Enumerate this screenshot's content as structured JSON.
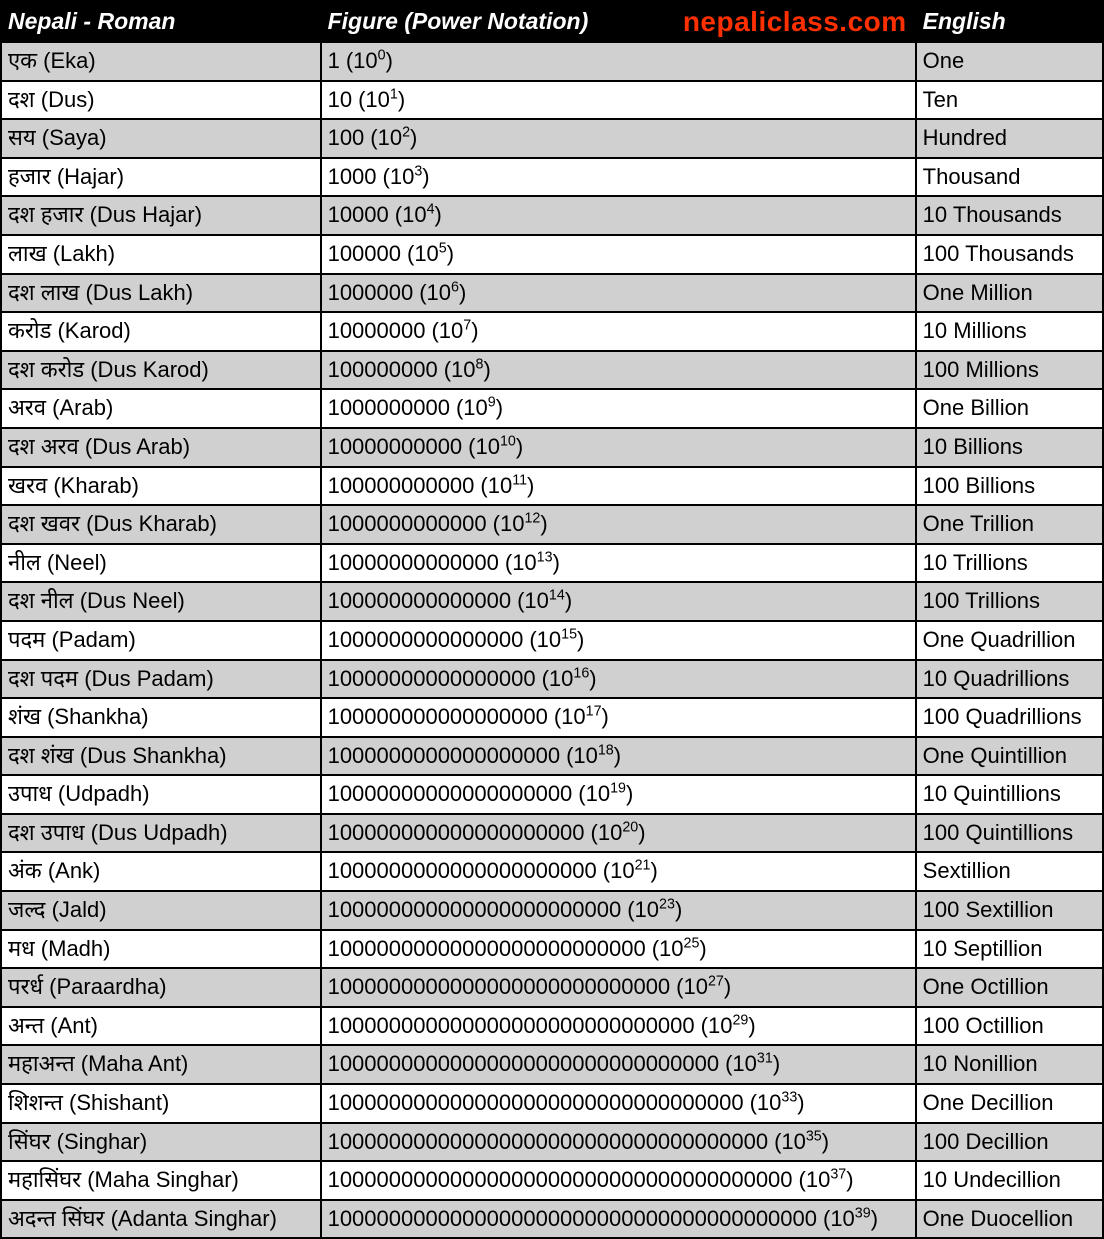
{
  "watermark": "nepaliclass.com",
  "colors": {
    "header_bg": "#000000",
    "header_text": "#ffffff",
    "row_odd_bg": "#d0d0d0",
    "row_even_bg": "#ffffff",
    "border": "#000000",
    "watermark": "#ff3000"
  },
  "typography": {
    "header_fontsize": 23,
    "header_style": "italic bold",
    "body_fontsize": 22,
    "watermark_fontsize": 28
  },
  "table": {
    "type": "table",
    "columns": [
      {
        "label": "Nepali - Roman",
        "width_pct": 29
      },
      {
        "label": "Figure (Power Notation)",
        "width_pct": 54
      },
      {
        "label": "English",
        "width_pct": 17
      }
    ],
    "rows": [
      {
        "nepali": "एक (Eka)",
        "figure": "1",
        "power_exp": "0",
        "english": "One",
        "shade": "odd"
      },
      {
        "nepali": "दश (Dus)",
        "figure": "10",
        "power_exp": "1",
        "english": "Ten",
        "shade": "even"
      },
      {
        "nepali": "सय (Saya)",
        "figure": "100",
        "power_exp": "2",
        "english": "Hundred",
        "shade": "odd"
      },
      {
        "nepali": "हजार (Hajar)",
        "figure": "1000",
        "power_exp": "3",
        "english": "Thousand",
        "shade": "even"
      },
      {
        "nepali": "दश हजार (Dus Hajar)",
        "figure": "10000",
        "power_exp": "4",
        "english": "10 Thousands",
        "shade": "odd"
      },
      {
        "nepali": "लाख (Lakh)",
        "figure": "100000",
        "power_exp": "5",
        "english": "100 Thousands",
        "shade": "even"
      },
      {
        "nepali": "दश लाख  (Dus Lakh)",
        "figure": "1000000",
        "power_exp": "6",
        "english": "One Million",
        "shade": "odd"
      },
      {
        "nepali": "करोड  (Karod)",
        "figure": "10000000",
        "power_exp": "7",
        "english": "10 Millions",
        "shade": "even"
      },
      {
        "nepali": "दश करोड  (Dus Karod)",
        "figure": "100000000",
        "power_exp": "8",
        "english": "100 Millions",
        "shade": "odd"
      },
      {
        "nepali": "अरव  (Arab)",
        "figure": "1000000000",
        "power_exp": "9",
        "english": "One Billion",
        "shade": "even"
      },
      {
        "nepali": "दश अरव  (Dus Arab)",
        "figure": "10000000000",
        "power_exp": "10",
        "english": "10 Billions",
        "shade": "odd"
      },
      {
        "nepali": "खरव  (Kharab)",
        "figure": "100000000000",
        "power_exp": "11",
        "english": "100 Billions",
        "shade": "even"
      },
      {
        "nepali": "दश खवर  (Dus Kharab)",
        "figure": "1000000000000",
        "power_exp": "12",
        "english": "One Trillion",
        "shade": "odd"
      },
      {
        "nepali": "नील  (Neel)",
        "figure": "10000000000000",
        "power_exp": "13",
        "english": "10 Trillions",
        "shade": "even"
      },
      {
        "nepali": "दश नील  (Dus Neel)",
        "figure": "100000000000000",
        "power_exp": "14",
        "english": "100 Trillions",
        "shade": "odd"
      },
      {
        "nepali": "पदम  (Padam)",
        "figure": "1000000000000000",
        "power_exp": "15",
        "english": "One Quadrillion",
        "shade": "even"
      },
      {
        "nepali": "दश पदम  (Dus Padam)",
        "figure": "10000000000000000",
        "power_exp": "16",
        "english": "10 Quadrillions",
        "shade": "odd"
      },
      {
        "nepali": "शंख  (Shankha)",
        "figure": "100000000000000000",
        "power_exp": "17",
        "english": "100 Quadrillions",
        "shade": "even"
      },
      {
        "nepali": "दश शंख  (Dus Shankha)",
        "figure": "1000000000000000000",
        "power_exp": "18",
        "english": "One Quintillion",
        "shade": "odd"
      },
      {
        "nepali": "उपाध (Udpadh)",
        "figure": "10000000000000000000",
        "power_exp": "19",
        "english": "10 Quintillions",
        "shade": "even"
      },
      {
        "nepali": "दश उपाध  (Dus Udpadh)",
        "figure": "100000000000000000000",
        "power_exp": "20",
        "english": "100 Quintillions",
        "shade": "odd"
      },
      {
        "nepali": "अंक (Ank)",
        "figure": "1000000000000000000000",
        "power_exp": "21",
        "english": "Sextillion",
        "shade": "even"
      },
      {
        "nepali": "जल्द (Jald)",
        "figure": "100000000000000000000000",
        "power_exp": "23",
        "english": "100 Sextillion",
        "shade": "odd"
      },
      {
        "nepali": "मध (Madh)",
        "figure": "10000000000000000000000000",
        "power_exp": "25",
        "english": "10 Septillion",
        "shade": "even"
      },
      {
        "nepali": "परर्ध (Paraardha)",
        "figure": "1000000000000000000000000000",
        "power_exp": "27",
        "english": "One Octillion",
        "shade": "odd"
      },
      {
        "nepali": "अन्त (Ant)",
        "figure": "100000000000000000000000000000",
        "power_exp": "29",
        "english": "100 Octillion",
        "shade": "even"
      },
      {
        "nepali": "महाअन्त (Maha Ant)",
        "figure": "10000000000000000000000000000000",
        "power_exp": "31",
        "english": "10 Nonillion",
        "shade": "odd"
      },
      {
        "nepali": "शिशन्त (Shishant)",
        "figure": "1000000000000000000000000000000000",
        "power_exp": "33",
        "english": "One Decillion",
        "shade": "even"
      },
      {
        "nepali": "सिंघर (Singhar)",
        "figure": "100000000000000000000000000000000000",
        "power_exp": "35",
        "english": "100 Decillion",
        "shade": "odd"
      },
      {
        "nepali": "महासिंघर (Maha Singhar)",
        "figure": "10000000000000000000000000000000000000",
        "power_exp": "37",
        "english": "10 Undecillion",
        "shade": "even"
      },
      {
        "nepali": "अदन्त सिंघर (Adanta Singhar)",
        "figure": "1000000000000000000000000000000000000000",
        "power_exp": "39",
        "english": "One Duocellion",
        "shade": "odd"
      }
    ]
  }
}
